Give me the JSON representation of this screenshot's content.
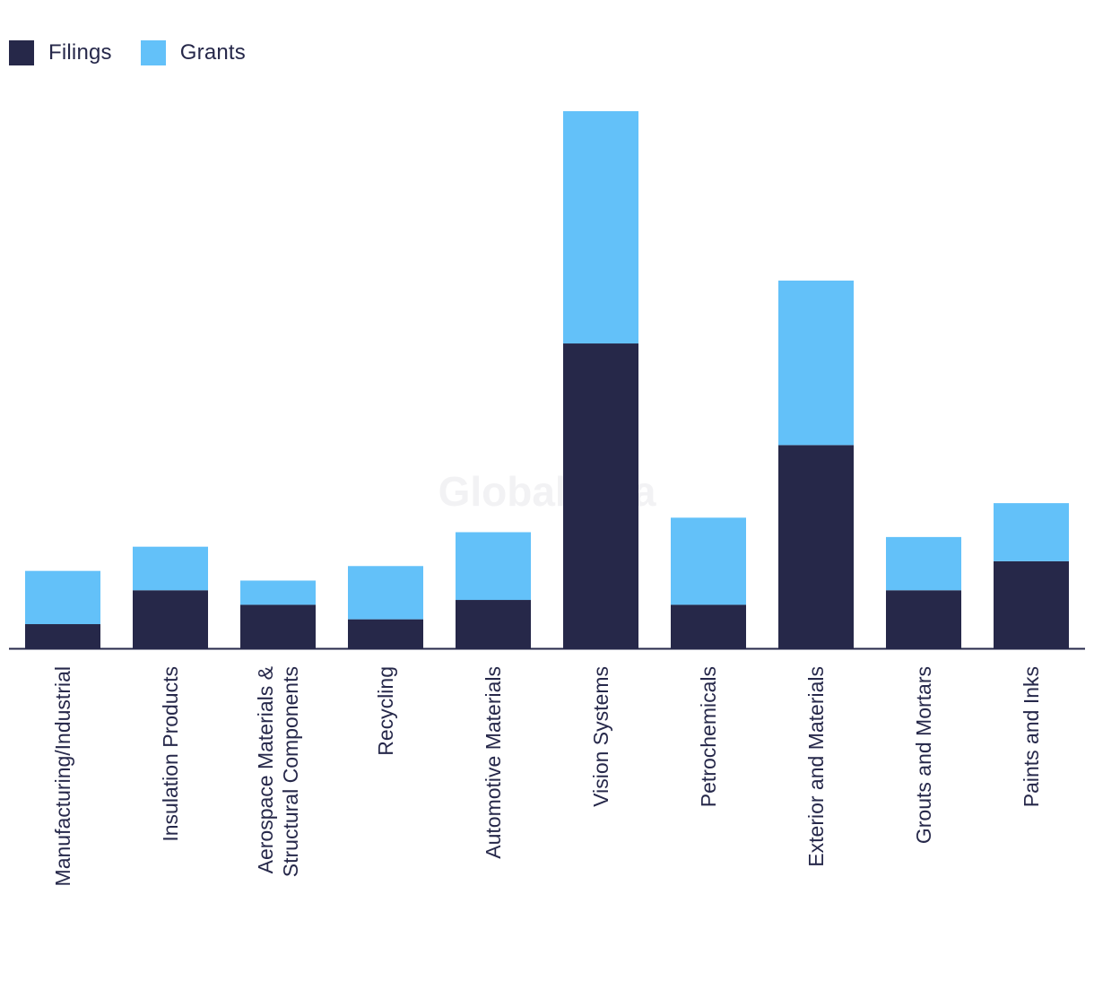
{
  "colors": {
    "filings": "#262849",
    "grants": "#63c1f9",
    "axis": "#26284a"
  },
  "watermark": "GlobalData",
  "legend": {
    "filings_label": "Filings",
    "grants_label": "Grants"
  },
  "chart_data": {
    "type": "bar",
    "stacked": true,
    "title": "",
    "xlabel": "",
    "ylabel": "",
    "grid": false,
    "legend_position": "top-left",
    "categories": [
      [
        "Manufacturing/Industrial"
      ],
      [
        "Insulation Products"
      ],
      [
        "Aerospace Materials &",
        "Structural Components"
      ],
      [
        "Recycling"
      ],
      [
        "Automotive Materials"
      ],
      [
        "Vision Systems"
      ],
      [
        "Petrochemicals"
      ],
      [
        "Exterior and Materials"
      ],
      [
        "Grouts and Mortars"
      ],
      [
        "Paints and Inks"
      ]
    ],
    "series": [
      {
        "name": "Filings",
        "values": [
          5,
          12,
          9,
          6,
          10,
          63,
          9,
          42,
          12,
          18
        ]
      },
      {
        "name": "Grants",
        "values": [
          11,
          9,
          5,
          11,
          14,
          48,
          18,
          34,
          11,
          12
        ]
      }
    ],
    "ylim": [
      0,
      111
    ]
  }
}
